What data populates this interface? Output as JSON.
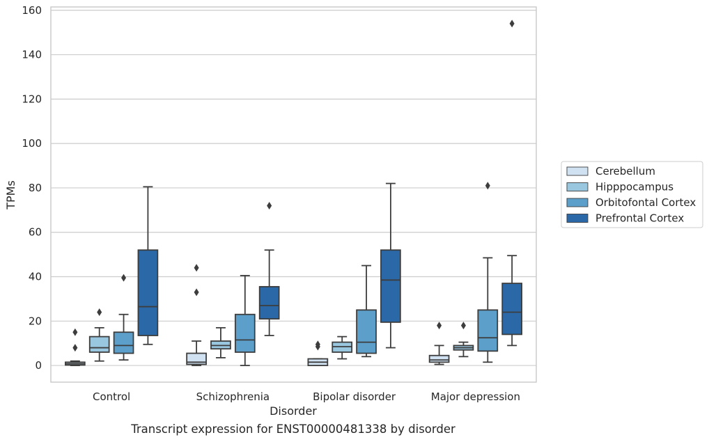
{
  "chart_data": {
    "type": "box",
    "xlabel": "Disorder",
    "ylabel": "TPMs",
    "caption": "Transcript expression for ENST00000481338 by disorder",
    "ylim": [
      -7.5,
      161.5
    ],
    "yticks": [
      0,
      20,
      40,
      60,
      80,
      100,
      120,
      140,
      160
    ],
    "grid": "horizontal",
    "legend_position": "right",
    "categories": [
      "Control",
      "Schizophrenia",
      "Bipolar disorder",
      "Major depression"
    ],
    "series": [
      {
        "name": "Cerebellum",
        "color": "#d0e2f2",
        "boxes": [
          {
            "whislo": 0,
            "q1": 0.2,
            "med": 0.8,
            "q3": 1.5,
            "whishi": 2,
            "fliers": [
              8,
              15
            ]
          },
          {
            "whislo": 0,
            "q1": 0.5,
            "med": 1.5,
            "q3": 5.5,
            "whishi": 11,
            "fliers": [
              33,
              44
            ]
          },
          {
            "whislo": 0,
            "q1": 0,
            "med": 1.5,
            "q3": 3,
            "whishi": 3,
            "fliers": [
              8.5,
              9.5
            ]
          },
          {
            "whislo": 0.5,
            "q1": 1.5,
            "med": 2.5,
            "q3": 4.5,
            "whishi": 9,
            "fliers": [
              18
            ]
          }
        ]
      },
      {
        "name": "Hipppocampus",
        "color": "#9ac7e0",
        "boxes": [
          {
            "whislo": 2,
            "q1": 6,
            "med": 8,
            "q3": 13,
            "whishi": 17,
            "fliers": [
              24
            ]
          },
          {
            "whislo": 3.5,
            "q1": 7.5,
            "med": 9,
            "q3": 11,
            "whishi": 17,
            "fliers": []
          },
          {
            "whislo": 3,
            "q1": 6,
            "med": 8.5,
            "q3": 10.5,
            "whishi": 13,
            "fliers": []
          },
          {
            "whislo": 4,
            "q1": 7,
            "med": 8,
            "q3": 9,
            "whishi": 10.5,
            "fliers": [
              18
            ]
          }
        ]
      },
      {
        "name": "Orbitofontal Cortex",
        "color": "#5c9fcb",
        "boxes": [
          {
            "whislo": 2.5,
            "q1": 5.5,
            "med": 9,
            "q3": 15,
            "whishi": 23,
            "fliers": [
              39.5
            ]
          },
          {
            "whislo": 0,
            "q1": 6,
            "med": 11.5,
            "q3": 23,
            "whishi": 40.5,
            "fliers": []
          },
          {
            "whislo": 4,
            "q1": 5.5,
            "med": 10.5,
            "q3": 25,
            "whishi": 45,
            "fliers": []
          },
          {
            "whislo": 1.5,
            "q1": 6.5,
            "med": 12.5,
            "q3": 25,
            "whishi": 48.5,
            "fliers": [
              81
            ]
          }
        ]
      },
      {
        "name": "Prefrontal Cortex",
        "color": "#2a68a8",
        "boxes": [
          {
            "whislo": 9.5,
            "q1": 13.5,
            "med": 26.5,
            "q3": 52,
            "whishi": 80.5,
            "fliers": []
          },
          {
            "whislo": 13.5,
            "q1": 21,
            "med": 27,
            "q3": 35.5,
            "whishi": 52,
            "fliers": [
              72
            ]
          },
          {
            "whislo": 8,
            "q1": 19.5,
            "med": 38.5,
            "q3": 52,
            "whishi": 82,
            "fliers": []
          },
          {
            "whislo": 9,
            "q1": 14,
            "med": 24,
            "q3": 37,
            "whishi": 49.5,
            "fliers": [
              154
            ]
          }
        ]
      }
    ]
  }
}
